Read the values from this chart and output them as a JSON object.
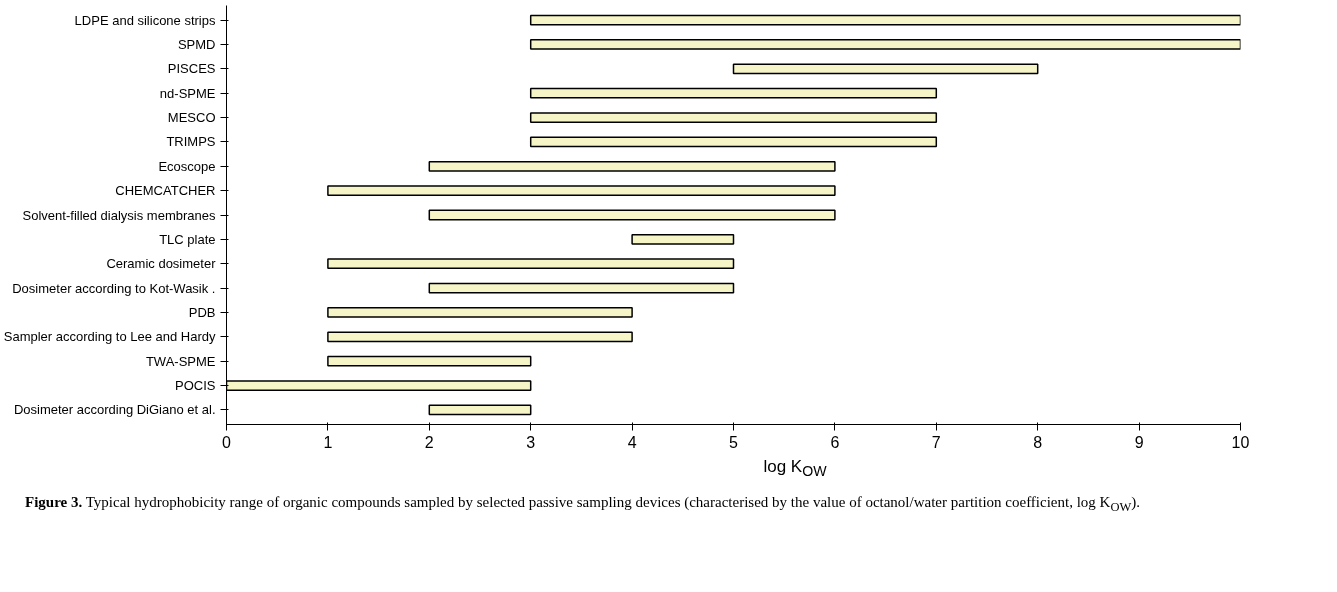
{
  "chart_data": {
    "type": "bar",
    "orientation": "horizontal",
    "categories": [
      "LDPE and silicone strips",
      "SPMD",
      "PISCES",
      "nd-SPME",
      "MESCO",
      "TRIMPS",
      "Ecoscope",
      "CHEMCATCHER",
      "Solvent-filled dialysis membranes",
      "TLC plate",
      "Ceramic dosimeter",
      "Dosimeter according to Kot-Wasik .",
      "PDB",
      "Sampler according to Lee and Hardy",
      "TWA-SPME",
      "POCIS",
      "Dosimeter according DiGiano et al."
    ],
    "base": [
      3,
      3,
      5,
      3,
      3,
      3,
      2,
      1,
      2,
      4,
      1,
      2,
      1,
      1,
      1,
      0,
      2
    ],
    "values": [
      7,
      7,
      3,
      4,
      4,
      4,
      4,
      5,
      4,
      1,
      4,
      3,
      3,
      3,
      2,
      3,
      1
    ],
    "color": "#f5f5c8",
    "xlim": [
      0,
      10
    ],
    "xticks": [
      0,
      1,
      2,
      3,
      4,
      5,
      6,
      7,
      8,
      9,
      10
    ],
    "xlabel": "log K$_{OW}$",
    "grid": false,
    "annotations": [
      "Figure 3. Typical hydrophobicity range of organic compounds sampled by selected passive sampling devices (characterised by the value of octanol/water partition coefficient, log K$_{OW}$)."
    ]
  }
}
